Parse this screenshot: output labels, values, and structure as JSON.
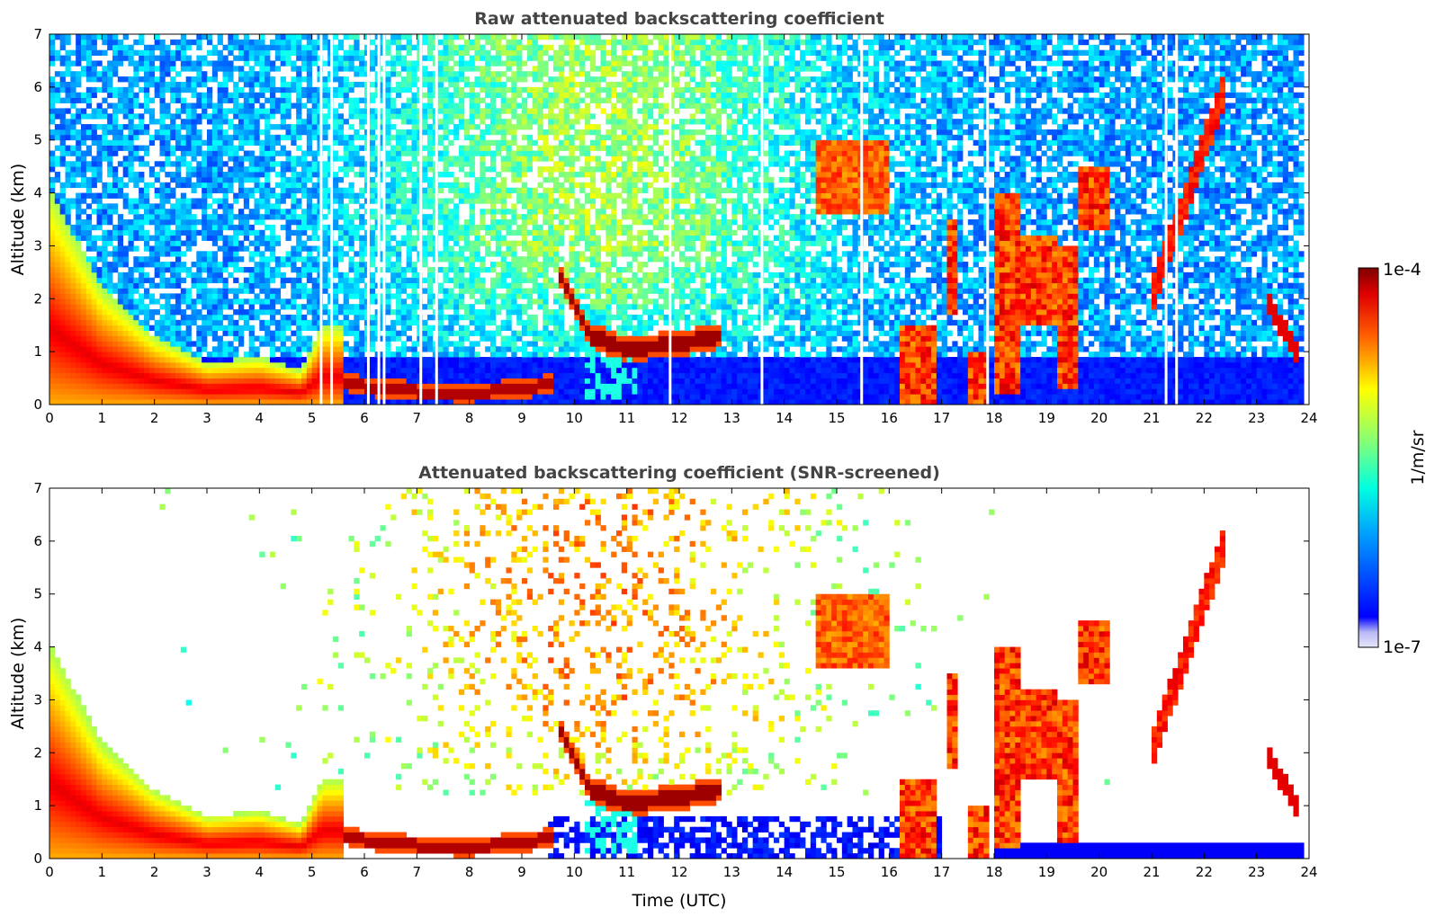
{
  "chart_data": [
    {
      "type": "heatmap",
      "title": "Raw attenuated backscattering coefficient",
      "xlabel": "",
      "ylabel": "Altitude (km)",
      "xlim": [
        0,
        24
      ],
      "ylim": [
        0,
        7
      ],
      "xticks": [
        "0",
        "1",
        "2",
        "3",
        "4",
        "5",
        "6",
        "7",
        "8",
        "9",
        "10",
        "11",
        "12",
        "13",
        "14",
        "15",
        "16",
        "17",
        "18",
        "19",
        "20",
        "21",
        "22",
        "23",
        "24"
      ],
      "yticks": [
        "0",
        "1",
        "2",
        "3",
        "4",
        "5",
        "6",
        "7"
      ],
      "features": [
        {
          "kind": "aerosol_layer",
          "t": [
            0,
            1,
            2,
            3,
            4,
            5,
            5.5
          ],
          "top_km": [
            4.1,
            2.2,
            1.3,
            0.8,
            0.9,
            0.7,
            1.5
          ],
          "level": 0.8
        },
        {
          "kind": "boundary_layer",
          "t": [
            5.6,
            6,
            7,
            8,
            9,
            9.5
          ],
          "alt_km": [
            0.45,
            0.35,
            0.25,
            0.22,
            0.3,
            0.38
          ],
          "level": 0.95
        },
        {
          "kind": "cloud_layer",
          "t": [
            9.7,
            10.3,
            11,
            12,
            12.8
          ],
          "alt_km": [
            2.5,
            1.3,
            1.05,
            1.15,
            1.3
          ],
          "level": 0.95
        },
        {
          "kind": "mid_cloud",
          "t": [
            14.6,
            16.0
          ],
          "alt_km": [
            3.6,
            5.0
          ],
          "level": 0.8
        },
        {
          "kind": "rising_cloud",
          "t": [
            21.0,
            22.4
          ],
          "alt_km": [
            2.0,
            6.0
          ],
          "level": 0.85
        },
        {
          "kind": "convective_cells",
          "t": [
            16.2,
            17.2,
            17.8,
            18.4,
            19.2,
            20.0
          ],
          "top_km": [
            1.5,
            3.5,
            1.0,
            4.0,
            3.2,
            4.5
          ],
          "level": 0.9
        }
      ]
    },
    {
      "type": "heatmap",
      "title": "Attenuated backscattering coefficient (SNR-screened)",
      "xlabel": "Time (UTC)",
      "ylabel": "Altitude (km)",
      "xlim": [
        0,
        24
      ],
      "ylim": [
        0,
        7
      ],
      "xticks": [
        "0",
        "1",
        "2",
        "3",
        "4",
        "5",
        "6",
        "7",
        "8",
        "9",
        "10",
        "11",
        "12",
        "13",
        "14",
        "15",
        "16",
        "17",
        "18",
        "19",
        "20",
        "21",
        "22",
        "23",
        "24"
      ],
      "yticks": [
        "0",
        "1",
        "2",
        "3",
        "4",
        "5",
        "6",
        "7"
      ],
      "note_screening": "low-SNR pixels removed (white)"
    }
  ],
  "colorbar": {
    "label": "1/m/sr",
    "max_label": "1e-4",
    "min_label": "1e-7",
    "scale": "log",
    "colormap": "jet"
  }
}
